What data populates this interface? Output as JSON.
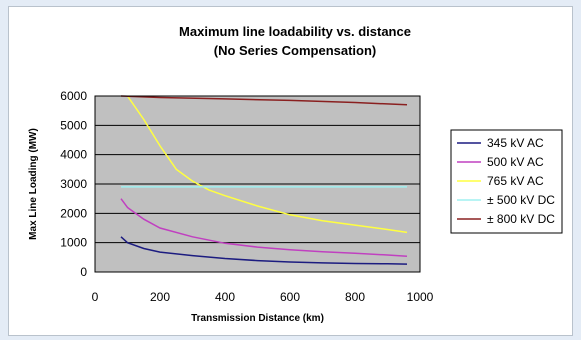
{
  "chart_data": {
    "type": "line",
    "title": "Maximum line loadability vs. distance",
    "subtitle": "(No Series Compensation)",
    "xlabel": "Transmission Distance (km)",
    "ylabel": "Max Line Loading (MW)",
    "xlim": [
      0,
      1000
    ],
    "ylim": [
      0,
      6000
    ],
    "xticks": [
      0,
      200,
      400,
      600,
      800,
      1000
    ],
    "yticks": [
      0,
      1000,
      2000,
      3000,
      4000,
      5000,
      6000
    ],
    "grid": "horizontal",
    "plot_background": "#c0c0c0",
    "legend_position": "right",
    "series": [
      {
        "name": "345 kV AC",
        "color": "#1c1c80",
        "x": [
          80,
          100,
          150,
          200,
          300,
          400,
          500,
          600,
          700,
          800,
          900,
          960
        ],
        "y": [
          1200,
          1000,
          800,
          680,
          560,
          460,
          390,
          340,
          310,
          290,
          280,
          270
        ]
      },
      {
        "name": "500 kV AC",
        "color": "#c040c0",
        "x": [
          80,
          100,
          150,
          200,
          300,
          400,
          500,
          600,
          700,
          800,
          900,
          960
        ],
        "y": [
          2500,
          2200,
          1800,
          1500,
          1200,
          980,
          850,
          760,
          690,
          640,
          580,
          540
        ]
      },
      {
        "name": "765 kV AC",
        "color": "#ffff40",
        "x": [
          100,
          150,
          200,
          250,
          300,
          350,
          400,
          500,
          600,
          700,
          800,
          900,
          960
        ],
        "y": [
          6000,
          5200,
          4300,
          3500,
          3100,
          2800,
          2600,
          2250,
          1950,
          1750,
          1600,
          1450,
          1350
        ]
      },
      {
        "name": "± 500 kV DC",
        "color": "#a0f0f0",
        "x": [
          80,
          960
        ],
        "y": [
          2900,
          2900
        ]
      },
      {
        "name": "± 800 kV DC",
        "color": "#8a2020",
        "x": [
          80,
          200,
          400,
          600,
          800,
          960
        ],
        "y": [
          6000,
          5950,
          5900,
          5850,
          5780,
          5700
        ]
      }
    ]
  }
}
